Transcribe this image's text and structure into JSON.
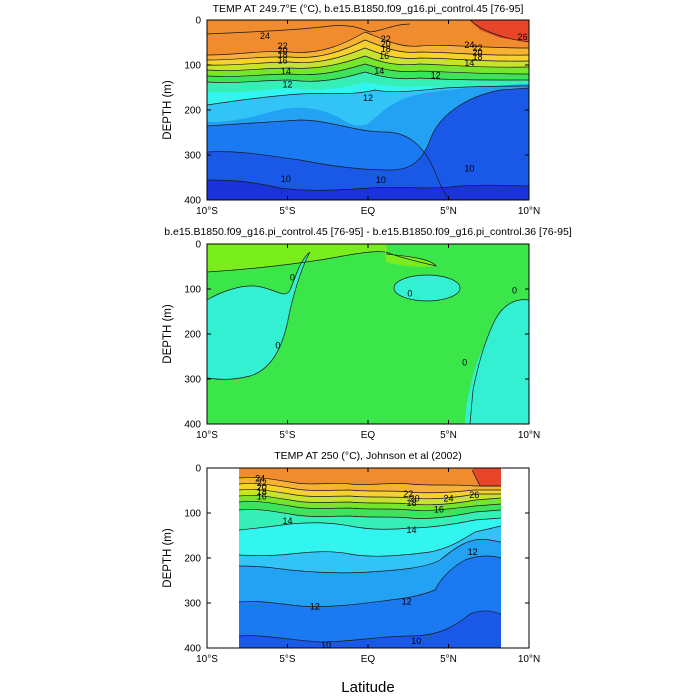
{
  "xlabel": "Latitude",
  "colors": {
    "c26": "#e8462a",
    "c24": "#f08c2e",
    "c22": "#f7b233",
    "c20": "#f6d12f",
    "c18": "#c7e22f",
    "c16": "#76e62d",
    "c15": "#3fe35b",
    "c14": "#35efb7",
    "c13": "#33f5ef",
    "c12": "#32c4f7",
    "c11": "#23a2f3",
    "c10": "#1b7af1",
    "c9": "#1a58e8",
    "c8": "#1a33d8",
    "d_pos": "#7aee1c",
    "d_zero": "#3be64a",
    "d_neg": "#33f0d2"
  },
  "chart_data": [
    {
      "type": "contour",
      "title": "TEMP AT 249.7°E (°C), b.e15.B1850.f09_g16.pi_control.45 [76-95]",
      "xlabel": "Latitude",
      "ylabel": "DEPTH (m)",
      "xlim": [
        -10,
        10
      ],
      "ylim": [
        400,
        0
      ],
      "x_ticks": [
        "10°S",
        "5°S",
        "EQ",
        "5°N",
        "10°N"
      ],
      "y_ticks": [
        "0",
        "100",
        "200",
        "300",
        "400"
      ],
      "contour_labels": [
        {
          "text": "24",
          "lat": -6.4,
          "depth": 35
        },
        {
          "text": "22",
          "lat": -5.3,
          "depth": 58
        },
        {
          "text": "20",
          "lat": -5.3,
          "depth": 68
        },
        {
          "text": "18",
          "lat": -5.3,
          "depth": 78
        },
        {
          "text": "16",
          "lat": -5.3,
          "depth": 90
        },
        {
          "text": "14",
          "lat": -5.1,
          "depth": 114
        },
        {
          "text": "12",
          "lat": -5.0,
          "depth": 143
        },
        {
          "text": "22",
          "lat": 1.1,
          "depth": 42
        },
        {
          "text": "20",
          "lat": 1.1,
          "depth": 53
        },
        {
          "text": "18",
          "lat": 1.1,
          "depth": 64
        },
        {
          "text": "16",
          "lat": 1.0,
          "depth": 80
        },
        {
          "text": "14",
          "lat": 0.7,
          "depth": 113
        },
        {
          "text": "12",
          "lat": 0.0,
          "depth": 173
        },
        {
          "text": "12",
          "lat": 4.2,
          "depth": 123
        },
        {
          "text": "24",
          "lat": 6.3,
          "depth": 55
        },
        {
          "text": "22",
          "lat": 6.8,
          "depth": 62
        },
        {
          "text": "20",
          "lat": 6.8,
          "depth": 72
        },
        {
          "text": "18",
          "lat": 6.8,
          "depth": 82
        },
        {
          "text": "14",
          "lat": 6.3,
          "depth": 95
        },
        {
          "text": "26",
          "lat": 9.6,
          "depth": 38
        },
        {
          "text": "10",
          "lat": -5.1,
          "depth": 353
        },
        {
          "text": "10",
          "lat": 0.8,
          "depth": 355
        },
        {
          "text": "10",
          "lat": 6.3,
          "depth": 330
        }
      ]
    },
    {
      "type": "contour",
      "title": "b.e15.B1850.f09_g16.pi_control.45 [76-95] - b.e15.B1850.f09_g16.pi_control.36 [76-95]",
      "xlabel": "Latitude",
      "ylabel": "DEPTH (m)",
      "xlim": [
        -10,
        10
      ],
      "ylim": [
        400,
        0
      ],
      "x_ticks": [
        "10°S",
        "5°S",
        "EQ",
        "5°N",
        "10°N"
      ],
      "y_ticks": [
        "0",
        "100",
        "200",
        "300",
        "400"
      ],
      "contour_labels": [
        {
          "text": "0",
          "lat": -4.7,
          "depth": 74
        },
        {
          "text": "0",
          "lat": -5.6,
          "depth": 226
        },
        {
          "text": "0",
          "lat": 2.6,
          "depth": 110
        },
        {
          "text": "0",
          "lat": 6.0,
          "depth": 263
        },
        {
          "text": "0",
          "lat": 9.1,
          "depth": 103
        }
      ]
    },
    {
      "type": "contour",
      "title": "TEMP AT 250 (°C), Johnson et al (2002)",
      "xlabel": "Latitude",
      "ylabel": "DEPTH (m)",
      "xlim": [
        -10,
        10
      ],
      "ylim": [
        400,
        0
      ],
      "x_ticks": [
        "10°S",
        "5°S",
        "EQ",
        "5°N",
        "10°N"
      ],
      "y_ticks": [
        "0",
        "100",
        "200",
        "300",
        "400"
      ],
      "data_lat_range": [
        -8,
        8
      ],
      "contour_labels": [
        {
          "text": "24",
          "lat": -6.7,
          "depth": 23
        },
        {
          "text": "22",
          "lat": -6.6,
          "depth": 33
        },
        {
          "text": "20",
          "lat": -6.6,
          "depth": 43
        },
        {
          "text": "18",
          "lat": -6.6,
          "depth": 53
        },
        {
          "text": "16",
          "lat": -6.6,
          "depth": 63
        },
        {
          "text": "14",
          "lat": -5.0,
          "depth": 118
        },
        {
          "text": "14",
          "lat": 2.7,
          "depth": 138
        },
        {
          "text": "22",
          "lat": 2.5,
          "depth": 58
        },
        {
          "text": "20",
          "lat": 2.9,
          "depth": 68
        },
        {
          "text": "18",
          "lat": 2.7,
          "depth": 78
        },
        {
          "text": "16",
          "lat": 4.4,
          "depth": 92
        },
        {
          "text": "24",
          "lat": 5.0,
          "depth": 68
        },
        {
          "text": "26",
          "lat": 6.6,
          "depth": 60
        },
        {
          "text": "12",
          "lat": 6.5,
          "depth": 187
        },
        {
          "text": "12",
          "lat": -3.3,
          "depth": 308
        },
        {
          "text": "12",
          "lat": 2.4,
          "depth": 297
        },
        {
          "text": "10",
          "lat": -2.6,
          "depth": 393
        },
        {
          "text": "10",
          "lat": 3.0,
          "depth": 384
        }
      ]
    }
  ]
}
